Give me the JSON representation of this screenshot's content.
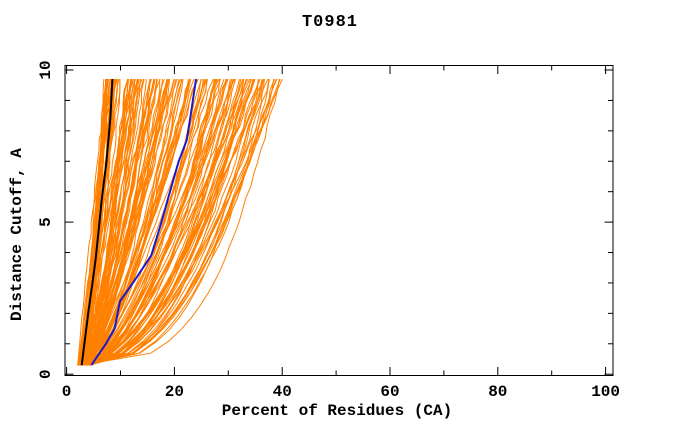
{
  "window": {
    "background": "#ffffff"
  },
  "chart_data": {
    "type": "line",
    "title": "T0981",
    "xlabel": "Percent of Residues (CA)",
    "ylabel": "Distance Cutoff, A",
    "xlim": [
      0,
      101.5
    ],
    "ylim": [
      0,
      10.15
    ],
    "grid": false,
    "legend": null,
    "axis_color": "#000000",
    "x_ticks": {
      "major_values": [
        0,
        20,
        40,
        60,
        80,
        100
      ],
      "major_labels": [
        "0",
        "20",
        "40",
        "60",
        "80",
        "100"
      ],
      "minor_step": 10
    },
    "y_ticks": {
      "major_values": [
        0,
        5,
        10
      ],
      "major_labels": [
        "0",
        "5",
        "10"
      ],
      "minor_step": 1
    },
    "series": [
      {
        "name": "reference-model-black",
        "color": "#000000",
        "width": 2,
        "points_percent_cutoff": [
          [
            2.8,
            0.3
          ],
          [
            3.3,
            1.0
          ],
          [
            4.0,
            2.0
          ],
          [
            4.8,
            3.0
          ],
          [
            5.4,
            3.8
          ],
          [
            6.1,
            5.0
          ],
          [
            6.5,
            5.7
          ],
          [
            7.4,
            7.0
          ],
          [
            8.1,
            8.4
          ],
          [
            8.3,
            9.0
          ],
          [
            8.5,
            9.7
          ]
        ]
      },
      {
        "name": "highlighted-model-blue",
        "color": "#1a1acd",
        "width": 2,
        "points_percent_cutoff": [
          [
            4.6,
            0.3
          ],
          [
            7.3,
            1.0
          ],
          [
            8.9,
            1.5
          ],
          [
            9.9,
            2.4
          ],
          [
            12.3,
            3.0
          ],
          [
            15.7,
            3.9
          ],
          [
            17.6,
            5.0
          ],
          [
            18.7,
            5.7
          ],
          [
            20.8,
            7.0
          ],
          [
            22.3,
            7.7
          ],
          [
            23.0,
            8.5
          ],
          [
            24.0,
            9.7
          ]
        ]
      }
    ],
    "ensemble": {
      "name": "prediction-models-orange",
      "color": "#FF8000",
      "width": 1,
      "count": 160,
      "seed": 42,
      "percent_start_range": [
        2.0,
        4.5
      ],
      "percent_top_range": [
        7,
        40
      ],
      "cutoff_range": [
        0.3,
        9.7
      ],
      "description": "Fan of overlapping orange model curves converging near 2-4% at cutoff 0.3 and spreading to 7-40% at cutoff 9.7"
    }
  }
}
